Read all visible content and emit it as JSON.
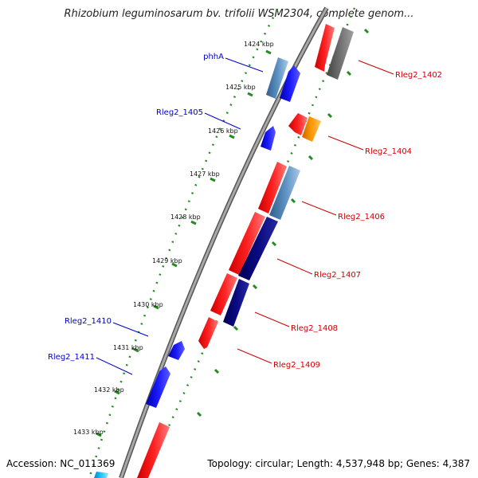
{
  "title": "Rhizobium leguminosarum bv. trifolii WSM2304, complete genom...",
  "footer": {
    "accession": "Accession: NC_011369",
    "summary": "Topology: circular; Length: 4,537,948 bp; Genes: 4,387"
  },
  "ticks": [
    "1424 kbp",
    "1425 kbp",
    "1426 kbp",
    "1427 kbp",
    "1428 kbp",
    "1429 kbp",
    "1430 kbp",
    "1431 kbp",
    "1432 kbp",
    "1433 kbp"
  ],
  "gene_labels": {
    "left": [
      "phhA",
      "Rleg2_1405",
      "Rleg2_1410",
      "Rleg2_1411"
    ],
    "right": [
      "Rleg2_1402",
      "Rleg2_1404",
      "Rleg2_1406",
      "Rleg2_1407",
      "Rleg2_1408",
      "Rleg2_1409"
    ]
  },
  "colors": {
    "forward_strand": "#ff0000",
    "reverse_strand": "#0000ff",
    "label_left": "#0000cc",
    "label_right": "#cc0000",
    "backbone": "#808080",
    "tick": "#228b22"
  }
}
